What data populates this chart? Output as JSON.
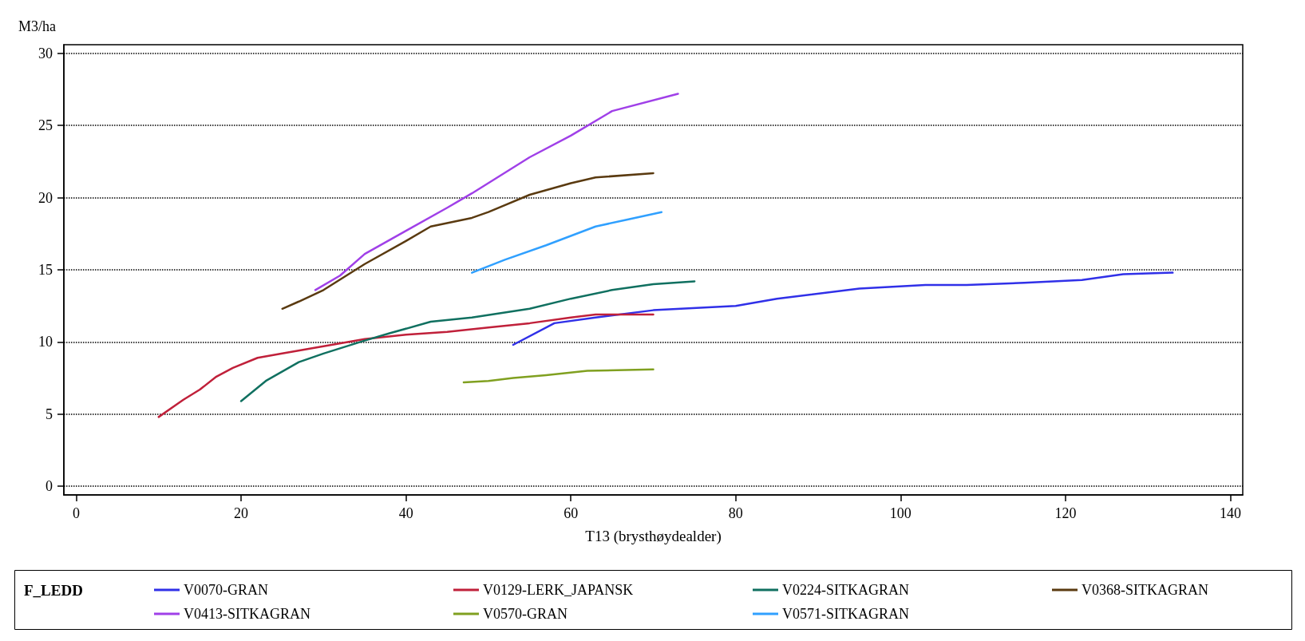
{
  "chart_data": {
    "type": "line",
    "xlabel": "T13 (brysthøydealder)",
    "ylabel": "M3/ha",
    "legend_title": "F_LEDD",
    "xlim": [
      -1.5,
      141.5
    ],
    "xticks": [
      0,
      20,
      40,
      60,
      80,
      100,
      120,
      140
    ],
    "ylim": [
      -0.6,
      30.6
    ],
    "yticks": [
      0,
      5,
      10,
      15,
      20,
      25,
      30
    ],
    "grid": "y",
    "legend": "bottom",
    "marker": "none",
    "line_style": "solid",
    "series": [
      {
        "name": "V0070-GRAN",
        "color": "#3030e8",
        "x": [
          53,
          58,
          63,
          70,
          80,
          85,
          95,
          103,
          108,
          115,
          122,
          127,
          133
        ],
        "values": [
          9.8,
          11.3,
          11.7,
          12.2,
          12.5,
          13.0,
          13.7,
          13.95,
          13.95,
          14.1,
          14.3,
          14.7,
          14.8
        ]
      },
      {
        "name": "V0129-LERK_JAPANSK",
        "color": "#c0203a",
        "x": [
          10,
          13,
          15,
          17,
          19,
          22,
          25,
          30,
          35,
          40,
          45,
          50,
          55,
          60,
          63,
          70
        ],
        "values": [
          4.8,
          6.0,
          6.7,
          7.6,
          8.2,
          8.9,
          9.2,
          9.7,
          10.2,
          10.5,
          10.7,
          11.0,
          11.3,
          11.7,
          11.9,
          11.9
        ]
      },
      {
        "name": "V0224-SITKAGRAN",
        "color": "#107060",
        "x": [
          20,
          23,
          27,
          30,
          35,
          38,
          43,
          48,
          55,
          60,
          65,
          70,
          75
        ],
        "values": [
          5.9,
          7.3,
          8.6,
          9.2,
          10.1,
          10.6,
          11.4,
          11.7,
          12.3,
          13.0,
          13.6,
          14.0,
          14.2
        ]
      },
      {
        "name": "V0368-SITKAGRAN",
        "color": "#5a3a10",
        "x": [
          25,
          27,
          30,
          35,
          40,
          43,
          48,
          50,
          55,
          60,
          63,
          70
        ],
        "values": [
          12.3,
          12.8,
          13.6,
          15.4,
          17.0,
          18.0,
          18.6,
          19.0,
          20.2,
          21.0,
          21.4,
          21.7
        ]
      },
      {
        "name": "V0413-SITKAGRAN",
        "color": "#a040e8",
        "x": [
          29,
          32,
          35,
          40,
          45,
          48,
          55,
          60,
          65,
          73
        ],
        "values": [
          13.6,
          14.6,
          16.1,
          17.7,
          19.3,
          20.3,
          22.8,
          24.3,
          26.0,
          27.2
        ]
      },
      {
        "name": "V0570-GRAN",
        "color": "#80a020",
        "x": [
          47,
          50,
          53,
          57,
          62,
          70
        ],
        "values": [
          7.2,
          7.3,
          7.5,
          7.7,
          8.0,
          8.1
        ]
      },
      {
        "name": "V0571-SITKAGRAN",
        "color": "#30a0ff",
        "x": [
          48,
          52,
          57,
          63,
          67,
          71
        ],
        "values": [
          14.8,
          15.7,
          16.7,
          18.0,
          18.5,
          19.0
        ]
      }
    ]
  }
}
